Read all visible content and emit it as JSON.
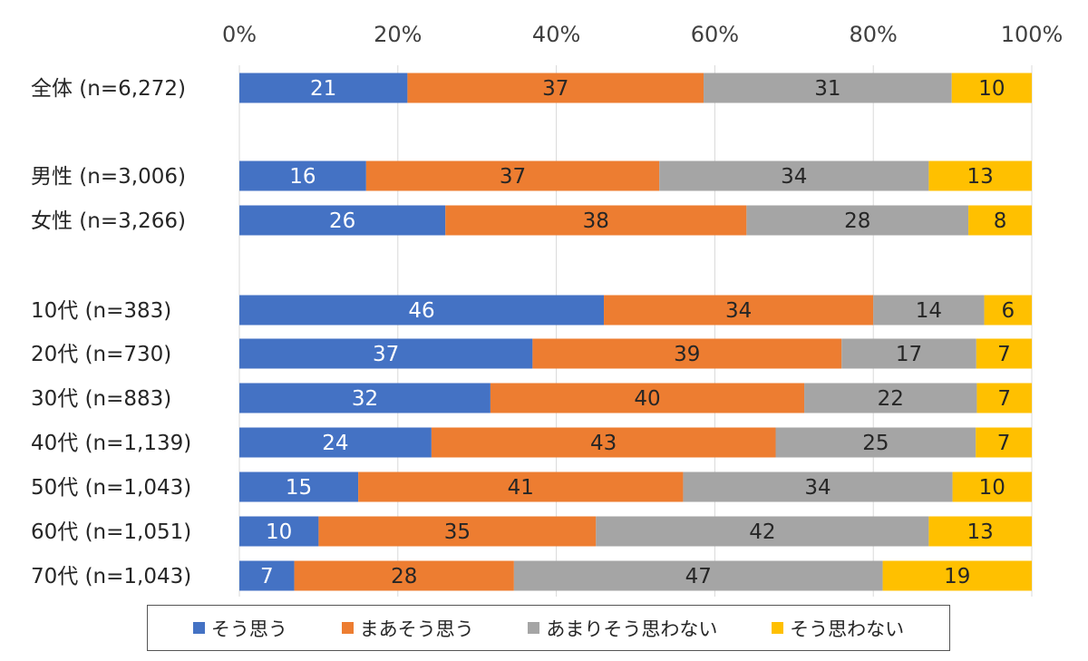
{
  "chart_data": {
    "type": "bar",
    "orientation": "horizontal",
    "stacked": "percent",
    "categories": [
      "全体 (n=6,272)",
      "男性 (n=3,006)",
      "女性 (n=3,266)",
      "10代 (n=383)",
      "20代 (n=730)",
      "30代 (n=883)",
      "40代 (n=1,139)",
      "50代 (n=1,043)",
      "60代 (n=1,051)",
      "70代 (n=1,043)"
    ],
    "series": [
      {
        "name": "そう思う",
        "color": "#4472C4",
        "values": [
          21,
          16,
          26,
          46,
          37,
          32,
          24,
          15,
          10,
          7
        ]
      },
      {
        "name": "まあそう思う",
        "color": "#ED7D31",
        "values": [
          37,
          37,
          38,
          34,
          39,
          40,
          43,
          41,
          35,
          28
        ]
      },
      {
        "name": "あまりそう思わない",
        "color": "#A5A5A5",
        "values": [
          31,
          34,
          28,
          14,
          17,
          22,
          25,
          34,
          42,
          47
        ]
      },
      {
        "name": "そう思わない",
        "color": "#FFC000",
        "values": [
          10,
          13,
          8,
          6,
          7,
          7,
          7,
          10,
          13,
          19
        ]
      }
    ],
    "x_ticks": [
      "0%",
      "20%",
      "40%",
      "60%",
      "80%",
      "100%"
    ],
    "xlim": [
      0,
      100
    ],
    "grid": "vertical",
    "legend_position": "bottom",
    "title": "",
    "xlabel": "",
    "ylabel": ""
  }
}
